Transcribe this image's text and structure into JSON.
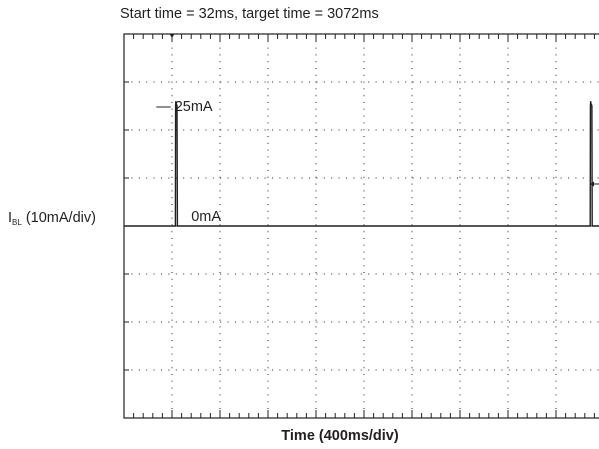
{
  "chart_data": {
    "type": "line",
    "title": "Start time = 32ms, target time = 3072ms",
    "xlabel": "Time (400ms/div)",
    "ylabel": {
      "symbol": "I",
      "subscript": "BL",
      "scale": "(10mA/div)"
    },
    "x_units": "ms",
    "y_units": "mA",
    "x_per_div": 400,
    "y_per_div": 10,
    "x_divisions": 10,
    "y_divisions": 8,
    "xlim": [
      0,
      4000
    ],
    "ylim": [
      -40,
      40
    ],
    "grid": true,
    "annotations": [
      {
        "text": "— 25mA",
        "x": 560,
        "y": 25
      },
      {
        "text": "0mA",
        "x": 560,
        "y": 0
      }
    ],
    "trigger_marker": {
      "x": 400
    },
    "level_marker": {
      "y": 10
    },
    "series": [
      {
        "points": [
          [
            0,
            0
          ],
          [
            415,
            0
          ],
          [
            428,
            0
          ],
          [
            430,
            25
          ],
          [
            432,
            26
          ],
          [
            434,
            25.2
          ],
          [
            436,
            25.5
          ],
          [
            438,
            25
          ],
          [
            440,
            25.3
          ],
          [
            442,
            25
          ],
          [
            445,
            0
          ],
          [
            461,
            0
          ],
          [
            3850,
            0
          ],
          [
            3885,
            0
          ],
          [
            3887,
            25
          ],
          [
            3889,
            26
          ],
          [
            3891,
            25.2
          ],
          [
            3893,
            25.5
          ],
          [
            3895,
            25
          ],
          [
            3897,
            25.3
          ],
          [
            3899,
            25
          ],
          [
            3902,
            0
          ],
          [
            3918,
            0
          ],
          [
            4000,
            0
          ]
        ]
      }
    ]
  }
}
